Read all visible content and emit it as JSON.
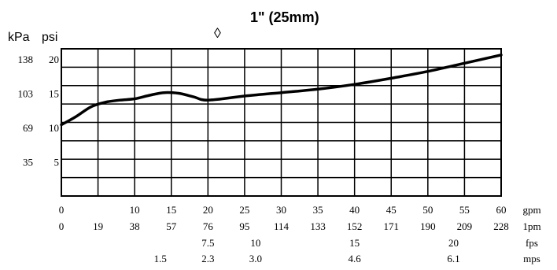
{
  "chart_data": {
    "type": "line",
    "title": "1\" (25mm)",
    "title_marker": "◊",
    "unit_left": "kPa",
    "unit_right": "psi",
    "kpa_ticks": [
      "138",
      "103",
      "69",
      "35"
    ],
    "psi_ticks": [
      {
        "label": "20",
        "value": 20
      },
      {
        "label": "15",
        "value": 15
      },
      {
        "label": "10",
        "value": 10
      },
      {
        "label": "5",
        "value": 5
      }
    ],
    "ylim": [
      0,
      21.5
    ],
    "xlim": [
      0,
      60
    ],
    "grid": true,
    "x_rows": [
      {
        "unit": "gpm",
        "ticks": [
          {
            "v": 0,
            "label": "0"
          },
          {
            "v": 10,
            "label": "10"
          },
          {
            "v": 15,
            "label": "15"
          },
          {
            "v": 20,
            "label": "20"
          },
          {
            "v": 25,
            "label": "25"
          },
          {
            "v": 30,
            "label": "30"
          },
          {
            "v": 35,
            "label": "35"
          },
          {
            "v": 40,
            "label": "40"
          },
          {
            "v": 45,
            "label": "45"
          },
          {
            "v": 50,
            "label": "50"
          },
          {
            "v": 55,
            "label": "55"
          },
          {
            "v": 60,
            "label": "60"
          }
        ]
      },
      {
        "unit": "1pm",
        "ticks": [
          {
            "v": 0,
            "label": "0"
          },
          {
            "v": 5,
            "label": "19"
          },
          {
            "v": 10,
            "label": "38"
          },
          {
            "v": 15,
            "label": "57"
          },
          {
            "v": 20,
            "label": "76"
          },
          {
            "v": 25,
            "label": "95"
          },
          {
            "v": 30,
            "label": "114"
          },
          {
            "v": 35,
            "label": "133"
          },
          {
            "v": 40,
            "label": "152"
          },
          {
            "v": 45,
            "label": "171"
          },
          {
            "v": 50,
            "label": "190"
          },
          {
            "v": 55,
            "label": "209"
          },
          {
            "v": 60,
            "label": "228"
          }
        ]
      },
      {
        "unit": "fps",
        "ticks": [
          {
            "v": 20,
            "label": "7.5"
          },
          {
            "v": 26.5,
            "label": "10"
          },
          {
            "v": 40,
            "label": "15"
          },
          {
            "v": 53.5,
            "label": "20"
          }
        ]
      },
      {
        "unit": "mps",
        "ticks": [
          {
            "v": 13.5,
            "label": "1.5"
          },
          {
            "v": 20,
            "label": "2.3"
          },
          {
            "v": 26.5,
            "label": "3.0"
          },
          {
            "v": 40,
            "label": "4.6"
          },
          {
            "v": 53.5,
            "label": "6.1"
          }
        ]
      }
    ],
    "series": [
      {
        "x": [
          0,
          2,
          4,
          6,
          8,
          10,
          12,
          14,
          16,
          18,
          20,
          25,
          30,
          35,
          40,
          45,
          50,
          55,
          60
        ],
        "y": [
          10.4,
          11.6,
          13.0,
          13.7,
          14.0,
          14.2,
          14.7,
          15.1,
          15.0,
          14.5,
          14.0,
          14.6,
          15.1,
          15.6,
          16.3,
          17.2,
          18.2,
          19.4,
          20.6
        ]
      }
    ]
  }
}
